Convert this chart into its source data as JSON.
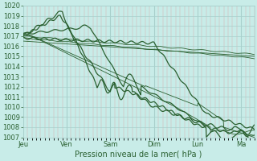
{
  "xlabel": "Pression niveau de la mer( hPa )",
  "ylim": [
    1007,
    1020
  ],
  "yticks": [
    1007,
    1008,
    1009,
    1010,
    1011,
    1012,
    1013,
    1014,
    1015,
    1016,
    1017,
    1018,
    1019,
    1020
  ],
  "x_day_labels": [
    "Jeu",
    "Ven",
    "Sam",
    "Dim",
    "Lun",
    "Ma"
  ],
  "x_day_positions": [
    0,
    1,
    2,
    3,
    4,
    5
  ],
  "xlim": [
    0,
    5.3
  ],
  "background_color": "#c8ece8",
  "grid_minor_color": "#d8a8a8",
  "grid_major_color": "#a8d0cc",
  "line_color": "#2a6030",
  "fg_color": "#2a6030",
  "xlabel_fontsize": 7,
  "tick_fontsize": 6
}
